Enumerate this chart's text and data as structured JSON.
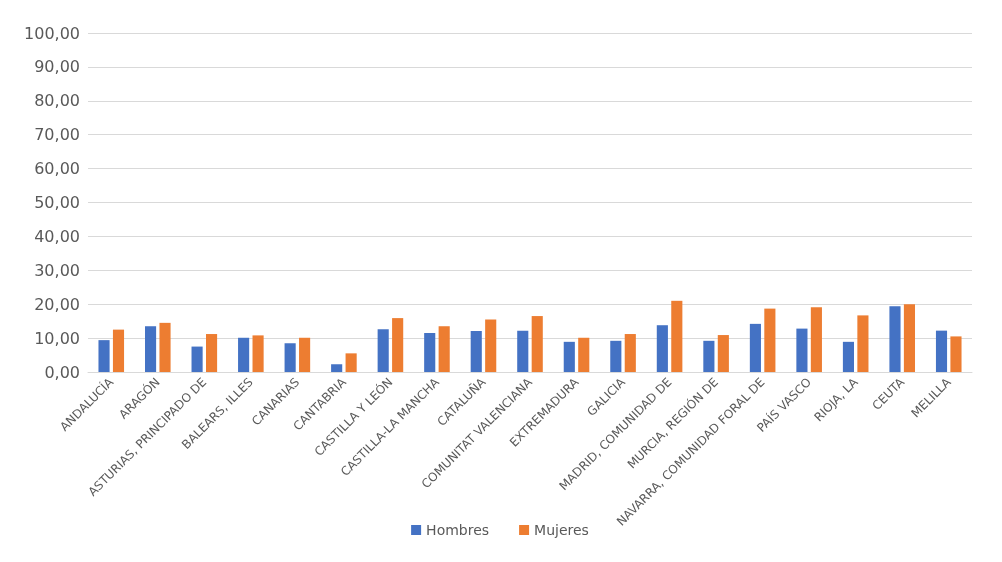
{
  "chart_data": {
    "type": "bar",
    "categories": [
      "ANDALUCÍA",
      "ARAGÓN",
      "ASTURIAS, PRINCIPADO DE",
      "BALEARS, ILLES",
      "CANARIAS",
      "CANTABRIA",
      "CASTILLA Y LEÓN",
      "CASTILLA-LA MANCHA",
      "CATALUÑA",
      "COMUNITAT VALENCIANA",
      "EXTREMADURA",
      "GALICIA",
      "MADRID, COMUNIDAD DE",
      "MURCIA, REGIÓN DE",
      "NAVARRA, COMUNIDAD FORAL DE",
      "PAÍS VASCO",
      "RIOJA, LA",
      "CEUTA",
      "MELILLA"
    ],
    "series": [
      {
        "name": "Hombres",
        "color": "#4472c4",
        "values": [
          9.4,
          13.5,
          7.5,
          10.1,
          8.5,
          2.3,
          12.6,
          11.5,
          12.1,
          12.2,
          8.9,
          9.2,
          13.8,
          9.2,
          14.2,
          12.8,
          8.9,
          19.4,
          12.2
        ]
      },
      {
        "name": "Mujeres",
        "color": "#ed7d31",
        "values": [
          12.5,
          14.5,
          11.2,
          10.8,
          10.1,
          5.5,
          15.9,
          13.5,
          15.5,
          16.5,
          10.1,
          11.2,
          21.0,
          10.9,
          18.7,
          19.1,
          16.7,
          20.0,
          10.5
        ]
      }
    ],
    "ylim": [
      0,
      100
    ],
    "yticks": [
      {
        "value": 0,
        "label": "0,00"
      },
      {
        "value": 10,
        "label": "10,00"
      },
      {
        "value": 20,
        "label": "20,00"
      },
      {
        "value": 30,
        "label": "30,00"
      },
      {
        "value": 40,
        "label": "40,00"
      },
      {
        "value": 50,
        "label": "50,00"
      },
      {
        "value": 60,
        "label": "60,00"
      },
      {
        "value": 70,
        "label": "70,00"
      },
      {
        "value": 80,
        "label": "80,00"
      },
      {
        "value": 90,
        "label": "90,00"
      },
      {
        "value": 100,
        "label": "100,00"
      }
    ],
    "grid": "y",
    "legend": "bottom"
  }
}
